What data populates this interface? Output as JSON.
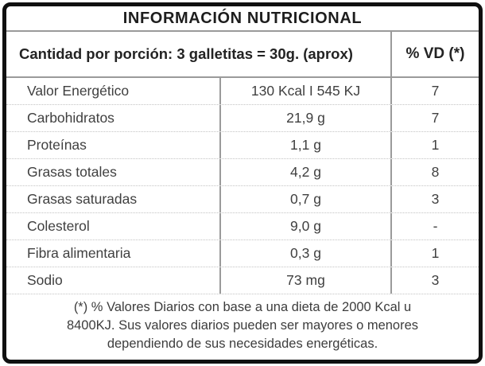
{
  "label": {
    "title": "INFORMACIÓN NUTRICIONAL",
    "serving_header": "Cantidad por porción: 3 galletitas = 30g. (aprox)",
    "dv_header": "% VD (*)",
    "rows": [
      {
        "name": "Valor Energético",
        "amount": "130 Kcal I 545 KJ",
        "dv": "7"
      },
      {
        "name": "Carbohidratos",
        "amount": "21,9 g",
        "dv": "7"
      },
      {
        "name": "Proteínas",
        "amount": "1,1 g",
        "dv": "1"
      },
      {
        "name": "Grasas totales",
        "amount": "4,2 g",
        "dv": "8"
      },
      {
        "name": "Grasas saturadas",
        "amount": "0,7 g",
        "dv": "3"
      },
      {
        "name": "Colesterol",
        "amount": "9,0 g",
        "dv": "-"
      },
      {
        "name": "Fibra alimentaria",
        "amount": "0,3 g",
        "dv": "1"
      },
      {
        "name": "Sodio",
        "amount": "73 mg",
        "dv": "3"
      }
    ],
    "footnote": [
      "(*) % Valores Diarios con base a una dieta de 2000 Kcal  u",
      "8400KJ. Sus valores diarios pueden ser mayores o menores",
      "dependiendo de sus necesidades energéticas."
    ],
    "colors": {
      "border": "#101010",
      "rule_heavy": "#9a9a9a",
      "rule_dotted": "#c3c3c3",
      "text_bold": "#1d1d1d",
      "text_regular": "#404040"
    }
  }
}
